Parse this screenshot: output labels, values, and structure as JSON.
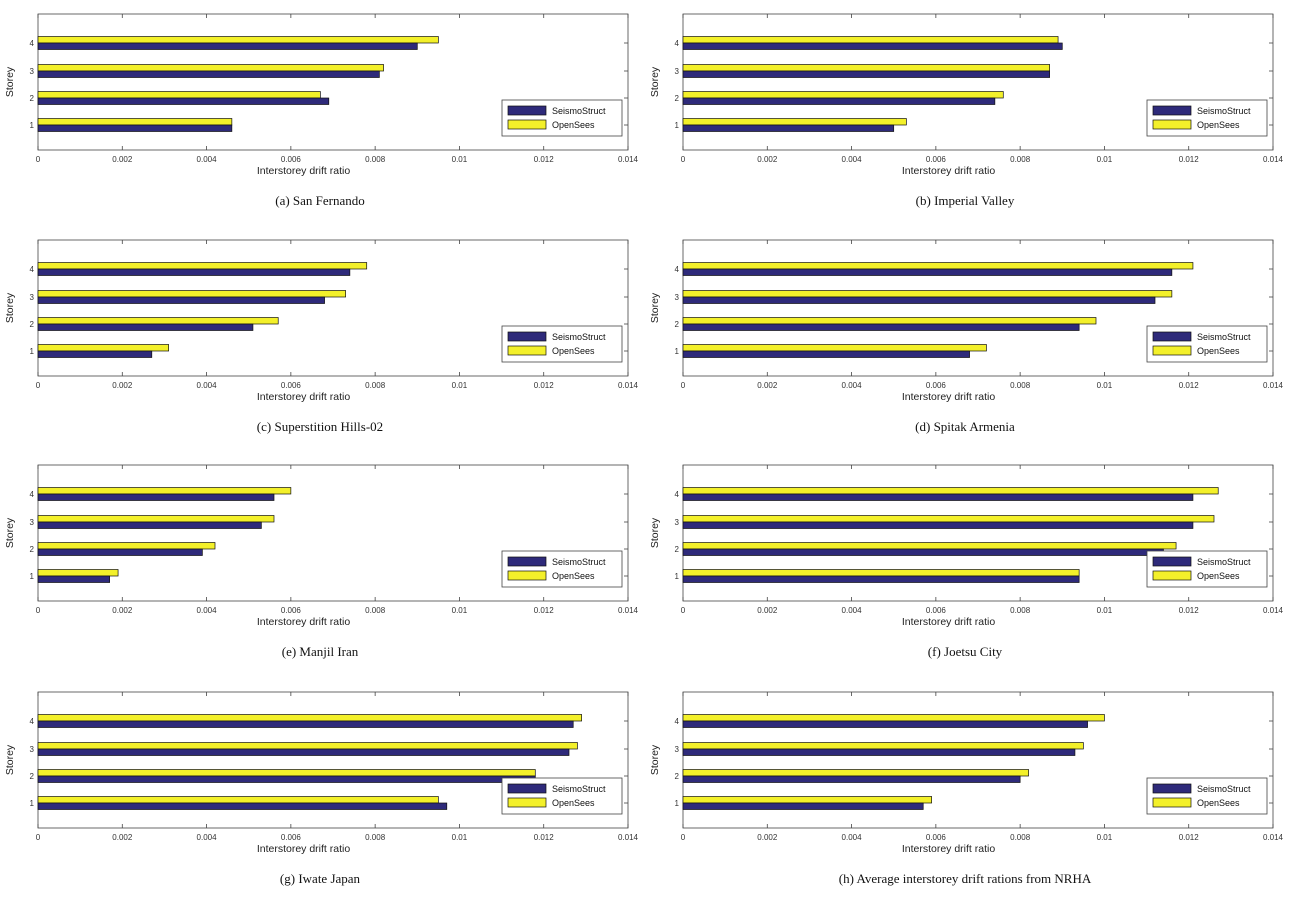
{
  "colors": {
    "seismostruct": "#2e2a7a",
    "opensees": "#f3f02a",
    "axis": "#444444",
    "bar_edge": "#111111"
  },
  "legend": [
    "SeismoStruct",
    "OpenSees"
  ],
  "chart_data": [
    {
      "type": "bar",
      "orientation": "horizontal",
      "caption": "(a) San Fernando",
      "xlabel": "Interstorey drift ratio",
      "ylabel": "Storey",
      "categories": [
        "1",
        "2",
        "3",
        "4"
      ],
      "xlim": [
        0,
        0.014
      ],
      "xticks": [
        "0",
        "0.002",
        "0.004",
        "0.006",
        "0.008",
        "0.01",
        "0.012",
        "0.014"
      ],
      "series": [
        {
          "name": "SeismoStruct",
          "values": [
            0.0046,
            0.0069,
            0.0081,
            0.009
          ]
        },
        {
          "name": "OpenSees",
          "values": [
            0.0046,
            0.0067,
            0.0082,
            0.0095
          ]
        }
      ],
      "legend_position": "bottom-right"
    },
    {
      "type": "bar",
      "orientation": "horizontal",
      "caption": "(b) Imperial Valley",
      "xlabel": "Interstorey drift ratio",
      "ylabel": "Storey",
      "categories": [
        "1",
        "2",
        "3",
        "4"
      ],
      "xlim": [
        0,
        0.014
      ],
      "xticks": [
        "0",
        "0.002",
        "0.004",
        "0.006",
        "0.008",
        "0.01",
        "0.012",
        "0.014"
      ],
      "series": [
        {
          "name": "SeismoStruct",
          "values": [
            0.005,
            0.0074,
            0.0087,
            0.009
          ]
        },
        {
          "name": "OpenSees",
          "values": [
            0.0053,
            0.0076,
            0.0087,
            0.0089
          ]
        }
      ],
      "legend_position": "bottom-right"
    },
    {
      "type": "bar",
      "orientation": "horizontal",
      "caption": "(c) Superstition Hills-02",
      "xlabel": "Interstorey drift ratio",
      "ylabel": "Storey",
      "categories": [
        "1",
        "2",
        "3",
        "4"
      ],
      "xlim": [
        0,
        0.014
      ],
      "xticks": [
        "0",
        "0.002",
        "0.004",
        "0.006",
        "0.008",
        "0.01",
        "0.012",
        "0.014"
      ],
      "series": [
        {
          "name": "SeismoStruct",
          "values": [
            0.0027,
            0.0051,
            0.0068,
            0.0074
          ]
        },
        {
          "name": "OpenSees",
          "values": [
            0.0031,
            0.0057,
            0.0073,
            0.0078
          ]
        }
      ],
      "legend_position": "bottom-right"
    },
    {
      "type": "bar",
      "orientation": "horizontal",
      "caption": "(d) Spitak Armenia",
      "xlabel": "Interstorey drift ratio",
      "ylabel": "Storey",
      "categories": [
        "1",
        "2",
        "3",
        "4"
      ],
      "xlim": [
        0,
        0.014
      ],
      "xticks": [
        "0",
        "0.002",
        "0.004",
        "0.006",
        "0.008",
        "0.01",
        "0.012",
        "0.014"
      ],
      "series": [
        {
          "name": "SeismoStruct",
          "values": [
            0.0068,
            0.0094,
            0.0112,
            0.0116
          ]
        },
        {
          "name": "OpenSees",
          "values": [
            0.0072,
            0.0098,
            0.0116,
            0.0121
          ]
        }
      ],
      "legend_position": "bottom-right"
    },
    {
      "type": "bar",
      "orientation": "horizontal",
      "caption": "(e) Manjil Iran",
      "xlabel": "Interstorey drift ratio",
      "ylabel": "Storey",
      "categories": [
        "1",
        "2",
        "3",
        "4"
      ],
      "xlim": [
        0,
        0.014
      ],
      "xticks": [
        "0",
        "0.002",
        "0.004",
        "0.006",
        "0.008",
        "0.01",
        "0.012",
        "0.014"
      ],
      "series": [
        {
          "name": "SeismoStruct",
          "values": [
            0.0017,
            0.0039,
            0.0053,
            0.0056
          ]
        },
        {
          "name": "OpenSees",
          "values": [
            0.0019,
            0.0042,
            0.0056,
            0.006
          ]
        }
      ],
      "legend_position": "bottom-right"
    },
    {
      "type": "bar",
      "orientation": "horizontal",
      "caption": "(f) Joetsu City",
      "xlabel": "Interstorey drift ratio",
      "ylabel": "Storey",
      "categories": [
        "1",
        "2",
        "3",
        "4"
      ],
      "xlim": [
        0,
        0.014
      ],
      "xticks": [
        "0",
        "0.002",
        "0.004",
        "0.006",
        "0.008",
        "0.01",
        "0.012",
        "0.014"
      ],
      "series": [
        {
          "name": "SeismoStruct",
          "values": [
            0.0094,
            0.0114,
            0.0121,
            0.0121
          ]
        },
        {
          "name": "OpenSees",
          "values": [
            0.0094,
            0.0117,
            0.0126,
            0.0127
          ]
        }
      ],
      "legend_position": "bottom-right"
    },
    {
      "type": "bar",
      "orientation": "horizontal",
      "caption": "(g) Iwate Japan",
      "xlabel": "Interstorey drift ratio",
      "ylabel": "Storey",
      "categories": [
        "1",
        "2",
        "3",
        "4"
      ],
      "xlim": [
        0,
        0.014
      ],
      "xticks": [
        "0",
        "0.002",
        "0.004",
        "0.006",
        "0.008",
        "0.01",
        "0.012",
        "0.014"
      ],
      "series": [
        {
          "name": "SeismoStruct",
          "values": [
            0.0097,
            0.0118,
            0.0126,
            0.0127
          ]
        },
        {
          "name": "OpenSees",
          "values": [
            0.0095,
            0.0118,
            0.0128,
            0.0129
          ]
        }
      ],
      "legend_position": "bottom-right"
    },
    {
      "type": "bar",
      "orientation": "horizontal",
      "caption": "(h) Average interstorey drift rations from NRHA",
      "xlabel": "Interstorey drift ratio",
      "ylabel": "Storey",
      "categories": [
        "1",
        "2",
        "3",
        "4"
      ],
      "xlim": [
        0,
        0.014
      ],
      "xticks": [
        "0",
        "0.002",
        "0.004",
        "0.006",
        "0.008",
        "0.01",
        "0.012",
        "0.014"
      ],
      "series": [
        {
          "name": "SeismoStruct",
          "values": [
            0.0057,
            0.008,
            0.0093,
            0.0096
          ]
        },
        {
          "name": "OpenSees",
          "values": [
            0.0059,
            0.0082,
            0.0095,
            0.01
          ]
        }
      ],
      "legend_position": "bottom-right"
    }
  ]
}
